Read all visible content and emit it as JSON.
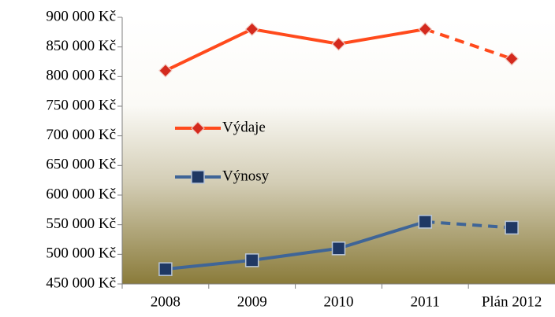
{
  "chart_data": {
    "type": "line",
    "categories": [
      "2008",
      "2009",
      "2010",
      "2011",
      "Plán 2012"
    ],
    "series": [
      {
        "name": "Výdaje",
        "color": "#ff4a1c",
        "marker_color": "#d42a1e",
        "marker": "diamond",
        "dashed_last": true,
        "values": [
          810000,
          880000,
          855000,
          880000,
          830000
        ]
      },
      {
        "name": "Výnosy",
        "color": "#3f6597",
        "marker_color": "#1f3864",
        "marker": "square",
        "dashed_last": true,
        "values": [
          475000,
          490000,
          510000,
          555000,
          545000
        ]
      }
    ],
    "ylim": [
      450000,
      900000
    ],
    "yticks": [
      {
        "value": 450000,
        "label": "450 000 Kč"
      },
      {
        "value": 500000,
        "label": "500 000 Kč"
      },
      {
        "value": 550000,
        "label": "550 000 Kč"
      },
      {
        "value": 600000,
        "label": "600 000 Kč"
      },
      {
        "value": 650000,
        "label": "650 000 Kč"
      },
      {
        "value": 700000,
        "label": "700 000 Kč"
      },
      {
        "value": 750000,
        "label": "750 000 Kč"
      },
      {
        "value": 800000,
        "label": "800 000 Kč"
      },
      {
        "value": 850000,
        "label": "850 000 Kč"
      },
      {
        "value": 900000,
        "label": "900 000 Kč"
      }
    ],
    "grid": false,
    "legend": "inside-left"
  }
}
